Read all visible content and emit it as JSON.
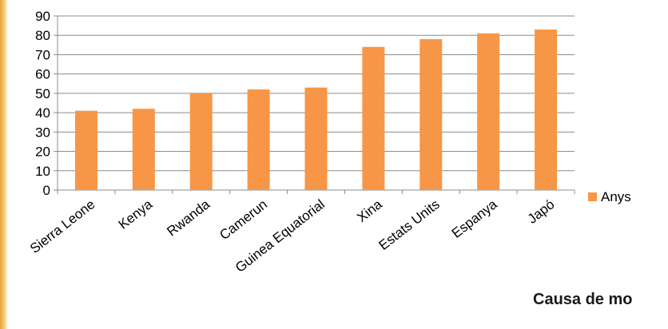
{
  "caption": "Causa de mo",
  "chart_data": {
    "type": "bar",
    "categories": [
      "Sierra Leone",
      "Kenya",
      "Rwanda",
      "Camerun",
      "Guinea Equatorial",
      "Xina",
      "Estats Units",
      "Espanya",
      "Japó"
    ],
    "series": [
      {
        "name": "Anys",
        "values": [
          41,
          42,
          50,
          52,
          53,
          74,
          78,
          81,
          83
        ]
      }
    ],
    "title": "",
    "xlabel": "",
    "ylabel": "",
    "ylim": [
      0,
      90
    ],
    "yticks": [
      0,
      10,
      20,
      30,
      40,
      50,
      60,
      70,
      80,
      90
    ],
    "grid": true,
    "legend": "right",
    "colors": {
      "bar": "#f79646",
      "grid": "#8c8c8c",
      "axis": "#8c8c8c",
      "text": "#000000"
    }
  }
}
